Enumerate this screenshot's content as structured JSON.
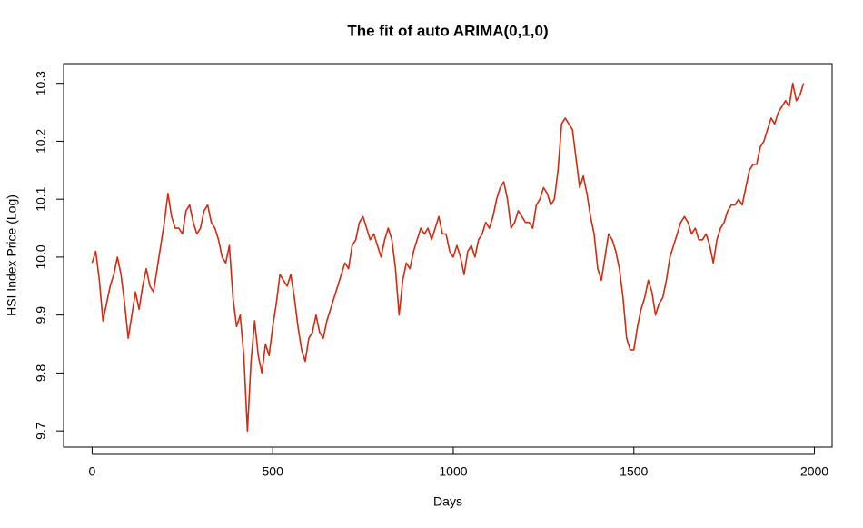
{
  "chart_data": {
    "type": "line",
    "title": "The fit of auto ARIMA(0,1,0)",
    "x_label": "Days",
    "y_label": "HSI Index Price (Log)",
    "xlim": [
      -79,
      2049
    ],
    "ylim": [
      9.672,
      10.334
    ],
    "xticks": [
      0,
      500,
      1000,
      1500,
      2000
    ],
    "yticks": [
      {
        "value": 9.7,
        "label": "9.7"
      },
      {
        "value": 9.8,
        "label": "9.8"
      },
      {
        "value": 9.9,
        "label": "9.9"
      },
      {
        "value": 10.0,
        "label": "10.0"
      },
      {
        "value": 10.1,
        "label": "10.1"
      },
      {
        "value": 10.2,
        "label": "10.2"
      },
      {
        "value": 10.3,
        "label": "10.3"
      }
    ],
    "series": [
      {
        "color": "#d42a12",
        "x": [
          0,
          10,
          20,
          30,
          40,
          50,
          60,
          70,
          80,
          90,
          100,
          110,
          120,
          130,
          140,
          150,
          160,
          170,
          180,
          190,
          200,
          210,
          220,
          230,
          240,
          250,
          260,
          270,
          280,
          290,
          300,
          310,
          320,
          330,
          340,
          350,
          360,
          370,
          380,
          390,
          400,
          410,
          420,
          430,
          440,
          450,
          460,
          470,
          480,
          490,
          500,
          510,
          520,
          530,
          540,
          550,
          560,
          570,
          580,
          590,
          600,
          610,
          620,
          630,
          640,
          650,
          660,
          670,
          680,
          690,
          700,
          710,
          720,
          730,
          740,
          750,
          760,
          770,
          780,
          790,
          800,
          810,
          820,
          830,
          840,
          850,
          860,
          870,
          880,
          890,
          900,
          910,
          920,
          930,
          940,
          950,
          960,
          970,
          980,
          990,
          1000,
          1010,
          1020,
          1030,
          1040,
          1050,
          1060,
          1070,
          1080,
          1090,
          1100,
          1110,
          1120,
          1130,
          1140,
          1150,
          1160,
          1170,
          1180,
          1190,
          1200,
          1210,
          1220,
          1230,
          1240,
          1250,
          1260,
          1270,
          1280,
          1290,
          1300,
          1310,
          1320,
          1330,
          1340,
          1350,
          1360,
          1370,
          1380,
          1390,
          1400,
          1410,
          1420,
          1430,
          1440,
          1450,
          1460,
          1470,
          1480,
          1490,
          1500,
          1510,
          1520,
          1530,
          1540,
          1550,
          1560,
          1570,
          1580,
          1590,
          1600,
          1610,
          1620,
          1630,
          1640,
          1650,
          1660,
          1670,
          1680,
          1690,
          1700,
          1710,
          1720,
          1730,
          1740,
          1750,
          1760,
          1770,
          1780,
          1790,
          1800,
          1810,
          1820,
          1830,
          1840,
          1850,
          1860,
          1870,
          1880,
          1890,
          1900,
          1910,
          1920,
          1930,
          1940,
          1950,
          1960,
          1970
        ],
        "values": [
          9.99,
          10.01,
          9.96,
          9.89,
          9.92,
          9.95,
          9.97,
          10.0,
          9.97,
          9.92,
          9.86,
          9.9,
          9.94,
          9.91,
          9.95,
          9.98,
          9.95,
          9.94,
          9.98,
          10.02,
          10.06,
          10.11,
          10.07,
          10.05,
          10.05,
          10.04,
          10.08,
          10.09,
          10.06,
          10.04,
          10.05,
          10.08,
          10.09,
          10.06,
          10.05,
          10.03,
          10.0,
          9.99,
          10.02,
          9.93,
          9.88,
          9.9,
          9.83,
          9.7,
          9.82,
          9.89,
          9.83,
          9.8,
          9.85,
          9.83,
          9.88,
          9.92,
          9.97,
          9.96,
          9.95,
          9.97,
          9.93,
          9.88,
          9.84,
          9.82,
          9.86,
          9.87,
          9.9,
          9.87,
          9.86,
          9.89,
          9.91,
          9.93,
          9.95,
          9.97,
          9.99,
          9.98,
          10.02,
          10.03,
          10.06,
          10.07,
          10.05,
          10.03,
          10.04,
          10.02,
          10.0,
          10.03,
          10.05,
          10.03,
          9.98,
          9.9,
          9.96,
          9.99,
          9.98,
          10.01,
          10.03,
          10.05,
          10.04,
          10.05,
          10.03,
          10.05,
          10.07,
          10.04,
          10.04,
          10.01,
          10.0,
          10.02,
          10.0,
          9.97,
          10.01,
          10.02,
          10.0,
          10.03,
          10.04,
          10.06,
          10.05,
          10.07,
          10.1,
          10.12,
          10.13,
          10.1,
          10.05,
          10.06,
          10.08,
          10.07,
          10.06,
          10.06,
          10.05,
          10.09,
          10.1,
          10.12,
          10.11,
          10.09,
          10.1,
          10.15,
          10.23,
          10.24,
          10.23,
          10.22,
          10.17,
          10.12,
          10.14,
          10.11,
          10.07,
          10.04,
          9.98,
          9.96,
          10.0,
          10.04,
          10.03,
          10.01,
          9.98,
          9.93,
          9.86,
          9.84,
          9.84,
          9.88,
          9.91,
          9.93,
          9.96,
          9.94,
          9.9,
          9.92,
          9.93,
          9.96,
          10.0,
          10.02,
          10.04,
          10.06,
          10.07,
          10.06,
          10.04,
          10.05,
          10.03,
          10.03,
          10.04,
          10.02,
          9.99,
          10.03,
          10.05,
          10.06,
          10.08,
          10.09,
          10.09,
          10.1,
          10.09,
          10.12,
          10.15,
          10.16,
          10.16,
          10.19,
          10.2,
          10.22,
          10.24,
          10.23,
          10.25,
          10.26,
          10.27,
          10.26,
          10.3,
          10.27,
          10.28,
          10.3
        ]
      }
    ]
  }
}
